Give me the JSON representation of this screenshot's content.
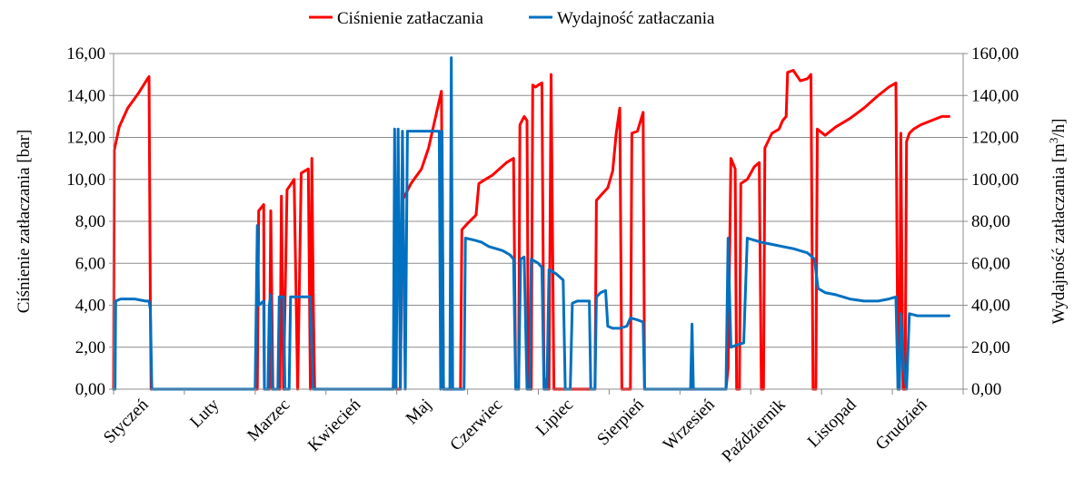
{
  "chart_data": {
    "type": "line",
    "categories": [
      "Styczeń",
      "Luty",
      "Marzec",
      "Kwiecień",
      "Maj",
      "Czerwiec",
      "Lipiec",
      "Sierpień",
      "Wrzesień",
      "Październik",
      "Listopad",
      "Grudzień"
    ],
    "y_left": {
      "label": "Ciśnienie zatłaczania [bar]",
      "ylim": [
        0,
        16
      ],
      "ticks": [
        "0,00",
        "2,00",
        "4,00",
        "6,00",
        "8,00",
        "10,00",
        "12,00",
        "14,00",
        "16,00"
      ]
    },
    "y_right": {
      "label_prefix": "Wydajność zatłaczania [m",
      "label_sup": "3",
      "label_suffix": "/h]",
      "ylim": [
        0,
        160
      ],
      "ticks": [
        "0,00",
        "20,00",
        "40,00",
        "60,00",
        "80,00",
        "100,00",
        "120,00",
        "140,00",
        "160,00"
      ]
    },
    "grid": true,
    "legend_position": "top",
    "series": [
      {
        "name": "Ciśnienie zatłaczania",
        "axis": "left",
        "color": "#ff0000",
        "points": [
          [
            0.0,
            0
          ],
          [
            0.01,
            11.4
          ],
          [
            0.08,
            12.5
          ],
          [
            0.2,
            13.4
          ],
          [
            0.35,
            14.1
          ],
          [
            0.48,
            14.8
          ],
          [
            0.5,
            14.9
          ],
          [
            0.52,
            4.0
          ],
          [
            0.53,
            0
          ],
          [
            2.0,
            0
          ],
          [
            2.03,
            0
          ],
          [
            2.05,
            8.5
          ],
          [
            2.12,
            8.8
          ],
          [
            2.13,
            0
          ],
          [
            2.2,
            0
          ],
          [
            2.22,
            8.5
          ],
          [
            2.25,
            0
          ],
          [
            2.35,
            0
          ],
          [
            2.37,
            9.2
          ],
          [
            2.4,
            0
          ],
          [
            2.45,
            9.5
          ],
          [
            2.55,
            10.0
          ],
          [
            2.6,
            0
          ],
          [
            2.65,
            10.3
          ],
          [
            2.75,
            10.5
          ],
          [
            2.78,
            0
          ],
          [
            2.8,
            11.0
          ],
          [
            2.82,
            4.5
          ],
          [
            2.84,
            0
          ],
          [
            3.95,
            0
          ],
          [
            3.97,
            3.6
          ],
          [
            3.99,
            0
          ],
          [
            4.05,
            0
          ],
          [
            4.08,
            9.0
          ],
          [
            4.2,
            9.8
          ],
          [
            4.35,
            10.5
          ],
          [
            4.45,
            11.5
          ],
          [
            4.55,
            13.0
          ],
          [
            4.63,
            14.2
          ],
          [
            4.66,
            0
          ],
          [
            4.9,
            0
          ],
          [
            4.92,
            7.6
          ],
          [
            5.0,
            7.9
          ],
          [
            5.12,
            8.3
          ],
          [
            5.16,
            9.8
          ],
          [
            5.25,
            10.0
          ],
          [
            5.35,
            10.2
          ],
          [
            5.45,
            10.5
          ],
          [
            5.55,
            10.8
          ],
          [
            5.65,
            11.0
          ],
          [
            5.68,
            0
          ],
          [
            5.72,
            0
          ],
          [
            5.74,
            12.6
          ],
          [
            5.8,
            13.0
          ],
          [
            5.84,
            12.8
          ],
          [
            5.86,
            0
          ],
          [
            5.9,
            0
          ],
          [
            5.92,
            14.5
          ],
          [
            5.96,
            14.4
          ],
          [
            6.0,
            14.5
          ],
          [
            6.05,
            14.6
          ],
          [
            6.08,
            0.6
          ],
          [
            6.1,
            0
          ],
          [
            6.15,
            0
          ],
          [
            6.18,
            15.0
          ],
          [
            6.22,
            0
          ],
          [
            6.8,
            0
          ],
          [
            6.82,
            9.0
          ],
          [
            6.9,
            9.3
          ],
          [
            6.98,
            9.6
          ],
          [
            7.05,
            10.4
          ],
          [
            7.1,
            12.2
          ],
          [
            7.15,
            13.4
          ],
          [
            7.18,
            0
          ],
          [
            7.3,
            0
          ],
          [
            7.32,
            12.2
          ],
          [
            7.4,
            12.3
          ],
          [
            7.48,
            13.2
          ],
          [
            7.5,
            0
          ],
          [
            8.65,
            0
          ],
          [
            8.68,
            1.0
          ],
          [
            8.72,
            11.0
          ],
          [
            8.78,
            10.5
          ],
          [
            8.8,
            0
          ],
          [
            8.84,
            0
          ],
          [
            8.86,
            9.8
          ],
          [
            8.95,
            10.0
          ],
          [
            9.05,
            10.6
          ],
          [
            9.12,
            10.8
          ],
          [
            9.15,
            0
          ],
          [
            9.18,
            0
          ],
          [
            9.2,
            11.5
          ],
          [
            9.3,
            12.2
          ],
          [
            9.4,
            12.4
          ],
          [
            9.45,
            12.8
          ],
          [
            9.5,
            13.0
          ],
          [
            9.52,
            15.1
          ],
          [
            9.6,
            15.2
          ],
          [
            9.7,
            14.7
          ],
          [
            9.8,
            14.8
          ],
          [
            9.85,
            15.0
          ],
          [
            9.88,
            0
          ],
          [
            9.92,
            0
          ],
          [
            9.94,
            12.4
          ],
          [
            10.05,
            12.1
          ],
          [
            10.2,
            12.5
          ],
          [
            10.4,
            12.9
          ],
          [
            10.6,
            13.4
          ],
          [
            10.8,
            14.0
          ],
          [
            10.95,
            14.4
          ],
          [
            11.05,
            14.6
          ],
          [
            11.08,
            0
          ],
          [
            11.1,
            0
          ],
          [
            11.12,
            12.2
          ],
          [
            11.15,
            0
          ],
          [
            11.18,
            0
          ],
          [
            11.2,
            11.8
          ],
          [
            11.24,
            12.2
          ],
          [
            11.3,
            12.4
          ],
          [
            11.4,
            12.6
          ],
          [
            11.55,
            12.8
          ],
          [
            11.7,
            13.0
          ],
          [
            11.8,
            13.0
          ]
        ]
      },
      {
        "name": "Wydajność zatłaczania",
        "axis": "right",
        "color": "#0070c0",
        "points": [
          [
            0.0,
            0
          ],
          [
            0.02,
            0
          ],
          [
            0.03,
            42
          ],
          [
            0.1,
            43
          ],
          [
            0.3,
            43
          ],
          [
            0.45,
            42
          ],
          [
            0.5,
            42
          ],
          [
            0.52,
            38
          ],
          [
            0.54,
            0
          ],
          [
            2.0,
            0
          ],
          [
            2.03,
            78
          ],
          [
            2.05,
            40
          ],
          [
            2.12,
            42
          ],
          [
            2.13,
            0
          ],
          [
            2.18,
            0
          ],
          [
            2.2,
            40
          ],
          [
            2.22,
            45
          ],
          [
            2.24,
            0
          ],
          [
            2.32,
            0
          ],
          [
            2.34,
            44
          ],
          [
            2.4,
            44
          ],
          [
            2.42,
            0
          ],
          [
            2.48,
            0
          ],
          [
            2.5,
            44
          ],
          [
            2.6,
            44
          ],
          [
            2.7,
            44
          ],
          [
            2.78,
            44
          ],
          [
            2.8,
            18
          ],
          [
            2.82,
            0
          ],
          [
            3.95,
            0
          ],
          [
            3.97,
            124
          ],
          [
            3.99,
            0
          ],
          [
            4.02,
            124
          ],
          [
            4.05,
            0
          ],
          [
            4.08,
            123
          ],
          [
            4.12,
            0
          ],
          [
            4.15,
            123
          ],
          [
            4.3,
            123
          ],
          [
            4.45,
            123
          ],
          [
            4.6,
            123
          ],
          [
            4.62,
            0
          ],
          [
            4.64,
            123
          ],
          [
            4.66,
            0
          ],
          [
            4.75,
            0
          ],
          [
            4.77,
            158
          ],
          [
            4.79,
            0
          ],
          [
            4.95,
            0
          ],
          [
            4.97,
            72
          ],
          [
            5.1,
            71
          ],
          [
            5.2,
            70
          ],
          [
            5.3,
            68
          ],
          [
            5.4,
            67
          ],
          [
            5.5,
            66
          ],
          [
            5.6,
            64
          ],
          [
            5.65,
            62
          ],
          [
            5.68,
            0
          ],
          [
            5.72,
            0
          ],
          [
            5.75,
            62
          ],
          [
            5.8,
            63
          ],
          [
            5.84,
            0
          ],
          [
            5.88,
            0
          ],
          [
            5.9,
            62
          ],
          [
            6.0,
            60
          ],
          [
            6.05,
            58
          ],
          [
            6.08,
            0
          ],
          [
            6.12,
            0
          ],
          [
            6.15,
            57
          ],
          [
            6.25,
            55
          ],
          [
            6.35,
            52
          ],
          [
            6.38,
            0
          ],
          [
            6.45,
            0
          ],
          [
            6.48,
            41
          ],
          [
            6.55,
            42
          ],
          [
            6.65,
            42
          ],
          [
            6.72,
            42
          ],
          [
            6.74,
            0
          ],
          [
            6.8,
            0
          ],
          [
            6.82,
            44
          ],
          [
            6.88,
            46
          ],
          [
            6.95,
            47
          ],
          [
            6.98,
            30
          ],
          [
            7.05,
            29
          ],
          [
            7.15,
            29
          ],
          [
            7.25,
            30
          ],
          [
            7.3,
            34
          ],
          [
            7.4,
            33
          ],
          [
            7.48,
            32
          ],
          [
            7.5,
            0
          ],
          [
            8.15,
            0
          ],
          [
            8.17,
            31
          ],
          [
            8.19,
            0
          ],
          [
            8.65,
            0
          ],
          [
            8.68,
            72
          ],
          [
            8.72,
            20
          ],
          [
            8.8,
            21
          ],
          [
            8.9,
            22
          ],
          [
            8.95,
            72
          ],
          [
            9.05,
            71
          ],
          [
            9.15,
            70
          ],
          [
            9.3,
            69
          ],
          [
            9.45,
            68
          ],
          [
            9.6,
            67
          ],
          [
            9.7,
            66
          ],
          [
            9.8,
            65
          ],
          [
            9.9,
            62
          ],
          [
            9.95,
            48
          ],
          [
            10.05,
            46
          ],
          [
            10.2,
            45
          ],
          [
            10.4,
            43
          ],
          [
            10.6,
            42
          ],
          [
            10.8,
            42
          ],
          [
            10.95,
            43
          ],
          [
            11.05,
            44
          ],
          [
            11.08,
            0
          ],
          [
            11.1,
            0
          ],
          [
            11.12,
            36
          ],
          [
            11.16,
            10
          ],
          [
            11.2,
            0
          ],
          [
            11.24,
            36
          ],
          [
            11.35,
            35
          ],
          [
            11.5,
            35
          ],
          [
            11.7,
            35
          ],
          [
            11.8,
            35
          ]
        ]
      }
    ]
  }
}
